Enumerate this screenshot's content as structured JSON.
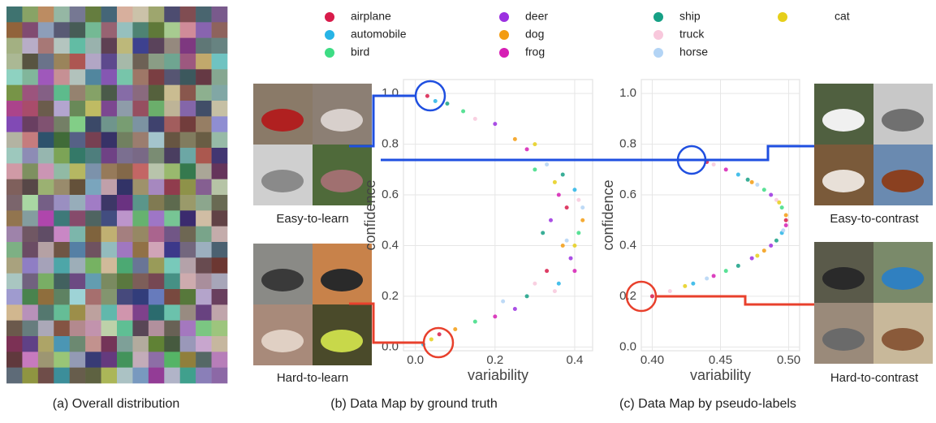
{
  "chart_data": [
    {
      "type": "scatter",
      "xlabel": "variability",
      "ylabel": "confidence",
      "xlim": [
        -0.03,
        0.445
      ],
      "ylim": [
        -0.015,
        1.055
      ],
      "xticks": [
        {
          "value": 0,
          "label": "0.0"
        },
        0.2,
        0.4
      ],
      "yticks": [
        {
          "value": 0,
          "label": "0.0"
        },
        0.2,
        0.4,
        0.6,
        0.8,
        {
          "value": 1,
          "label": "1.0"
        }
      ],
      "grid": true,
      "series": [
        {
          "name": "airplane",
          "color": "#d81b4a",
          "x": [
            0.03,
            0.38,
            0.33,
            0.06
          ],
          "values": [
            0.99,
            0.55,
            0.3,
            0.05
          ]
        },
        {
          "name": "automobile",
          "color": "#27b4e6",
          "x": [
            0.05,
            0.4,
            0.36,
            0.02
          ],
          "values": [
            0.97,
            0.62,
            0.25,
            0.01
          ]
        },
        {
          "name": "bird",
          "color": "#3ddc84",
          "x": [
            0.12,
            0.41,
            0.3,
            0.15
          ],
          "values": [
            0.93,
            0.45,
            0.7,
            0.1
          ]
        },
        {
          "name": "deer",
          "color": "#9b30e0",
          "x": [
            0.2,
            0.39,
            0.34,
            0.25
          ],
          "values": [
            0.88,
            0.35,
            0.5,
            0.15
          ]
        },
        {
          "name": "dog",
          "color": "#f39c12",
          "x": [
            0.25,
            0.42,
            0.37,
            0.1
          ],
          "values": [
            0.82,
            0.5,
            0.4,
            0.07
          ]
        },
        {
          "name": "frog",
          "color": "#d61fb4",
          "x": [
            0.28,
            0.36,
            0.4,
            0.2
          ],
          "values": [
            0.78,
            0.6,
            0.3,
            0.12
          ]
        },
        {
          "name": "ship",
          "color": "#16a085",
          "x": [
            0.08,
            0.37,
            0.32,
            0.28
          ],
          "values": [
            0.96,
            0.68,
            0.45,
            0.2
          ]
        },
        {
          "name": "truck",
          "color": "#f8c8dc",
          "x": [
            0.15,
            0.41,
            0.35,
            0.3
          ],
          "values": [
            0.9,
            0.58,
            0.22,
            0.25
          ]
        },
        {
          "name": "horse",
          "color": "#b3d4f5",
          "x": [
            0.33,
            0.38,
            0.42,
            0.22
          ],
          "values": [
            0.72,
            0.42,
            0.55,
            0.18
          ]
        },
        {
          "name": "cat",
          "color": "#e6cf1a",
          "x": [
            0.3,
            0.4,
            0.35,
            0.04
          ],
          "values": [
            0.8,
            0.4,
            0.65,
            0.03
          ]
        }
      ]
    },
    {
      "type": "scatter",
      "xlabel": "variability",
      "ylabel": "confidence",
      "xlim": [
        0.392,
        0.508
      ],
      "ylim": [
        -0.015,
        1.055
      ],
      "xticks": [
        {
          "value": 0.4,
          "label": "0.40"
        },
        0.45,
        {
          "value": 0.5,
          "label": "0.50"
        }
      ],
      "yticks": [
        {
          "value": 0,
          "label": "0.0"
        },
        0.2,
        0.4,
        0.6,
        0.8,
        {
          "value": 1,
          "label": "1.0"
        }
      ],
      "grid": true,
      "series": [
        {
          "color": "#d81b4a",
          "x": [
            0.4,
            0.498,
            0.44
          ],
          "values": [
            0.2,
            0.5,
            0.73
          ]
        },
        {
          "color": "#27b4e6",
          "x": [
            0.43,
            0.495,
            0.463
          ],
          "values": [
            0.25,
            0.45,
            0.68
          ]
        },
        {
          "color": "#3ddc84",
          "x": [
            0.454,
            0.495,
            0.482
          ],
          "values": [
            0.3,
            0.55,
            0.62
          ]
        },
        {
          "color": "#9b30e0",
          "x": [
            0.473,
            0.487,
            0.487
          ],
          "values": [
            0.35,
            0.4,
            0.6
          ]
        },
        {
          "color": "#f39c12",
          "x": [
            0.482,
            0.498,
            0.473
          ],
          "values": [
            0.38,
            0.52,
            0.65
          ]
        },
        {
          "color": "#d61fb4",
          "x": [
            0.445,
            0.498,
            0.454
          ],
          "values": [
            0.28,
            0.48,
            0.7
          ]
        },
        {
          "color": "#16a085",
          "x": [
            0.463,
            0.491,
            0.47
          ],
          "values": [
            0.32,
            0.42,
            0.66
          ]
        },
        {
          "color": "#f8c8dc",
          "x": [
            0.413,
            0.491,
            0.445
          ],
          "values": [
            0.22,
            0.58,
            0.72
          ]
        },
        {
          "color": "#b3d4f5",
          "x": [
            0.44,
            0.496,
            0.477
          ],
          "values": [
            0.27,
            0.46,
            0.64
          ]
        },
        {
          "color": "#e6cf1a",
          "x": [
            0.424,
            0.477,
            0.493
          ],
          "values": [
            0.24,
            0.36,
            0.57
          ]
        }
      ]
    }
  ],
  "image_labels": [
    "Easy-to-learn",
    "Hard-to-learn",
    "Easy-to-contrast",
    "Hard-to-contrast"
  ],
  "captions": [
    "(a) Overall distribution",
    "(b) Data Map by ground truth",
    "(c) Data Map by pseudo-labels"
  ]
}
